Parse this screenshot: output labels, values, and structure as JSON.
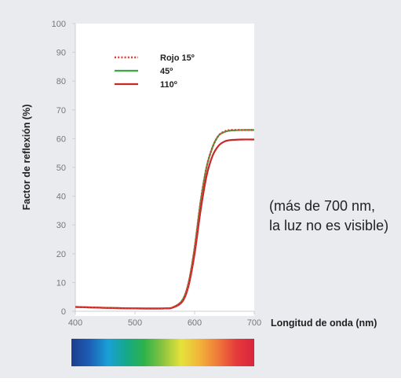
{
  "chart_data": {
    "type": "line",
    "ylabel": "Factor de reflexión (%)",
    "xlabel": "Longitud de onda (nm)",
    "xlim": [
      400,
      700
    ],
    "ylim": [
      0,
      100
    ],
    "x_ticks": [
      "400",
      "500",
      "600",
      "700"
    ],
    "y_ticks": [
      "0",
      "10",
      "20",
      "30",
      "40",
      "50",
      "60",
      "70",
      "80",
      "90",
      "100"
    ],
    "grid": false,
    "legend_position": "top-left",
    "note_lines": [
      "(más de 700 nm,",
      "la luz no es visible)"
    ],
    "series": [
      {
        "name": "Rojo 15º",
        "color": "#e53935",
        "style": "dotted",
        "points": [
          [
            400,
            1.5
          ],
          [
            450,
            1.2
          ],
          [
            500,
            1.0
          ],
          [
            550,
            1.0
          ],
          [
            565,
            1.5
          ],
          [
            580,
            4
          ],
          [
            590,
            10
          ],
          [
            600,
            22
          ],
          [
            610,
            38
          ],
          [
            620,
            50
          ],
          [
            630,
            57
          ],
          [
            640,
            61
          ],
          [
            650,
            62.5
          ],
          [
            660,
            63
          ],
          [
            680,
            63
          ],
          [
            700,
            63
          ]
        ]
      },
      {
        "name": "45º",
        "color": "#3aa843",
        "style": "solid",
        "points": [
          [
            400,
            1.5
          ],
          [
            450,
            1.2
          ],
          [
            500,
            1.0
          ],
          [
            550,
            1.0
          ],
          [
            565,
            1.5
          ],
          [
            580,
            4
          ],
          [
            590,
            10
          ],
          [
            600,
            22
          ],
          [
            610,
            38
          ],
          [
            620,
            50
          ],
          [
            630,
            57
          ],
          [
            640,
            61
          ],
          [
            650,
            62.3
          ],
          [
            660,
            62.8
          ],
          [
            680,
            63
          ],
          [
            700,
            63
          ]
        ]
      },
      {
        "name": "110º",
        "color": "#c62828",
        "style": "solid",
        "points": [
          [
            400,
            1.5
          ],
          [
            450,
            1.2
          ],
          [
            500,
            1.0
          ],
          [
            550,
            1.0
          ],
          [
            565,
            1.4
          ],
          [
            580,
            3.5
          ],
          [
            590,
            9
          ],
          [
            600,
            20
          ],
          [
            610,
            35
          ],
          [
            620,
            47
          ],
          [
            630,
            54
          ],
          [
            640,
            57.5
          ],
          [
            650,
            59
          ],
          [
            660,
            59.5
          ],
          [
            680,
            59.7
          ],
          [
            700,
            59.7
          ]
        ]
      }
    ],
    "spectrum_colors": [
      "#1b3e8f",
      "#1c5fb5",
      "#1aa0d8",
      "#15a88a",
      "#2fb24a",
      "#8bc43f",
      "#e6e23a",
      "#f2b43a",
      "#ef7a3a",
      "#e53b3b",
      "#d9243f"
    ]
  }
}
